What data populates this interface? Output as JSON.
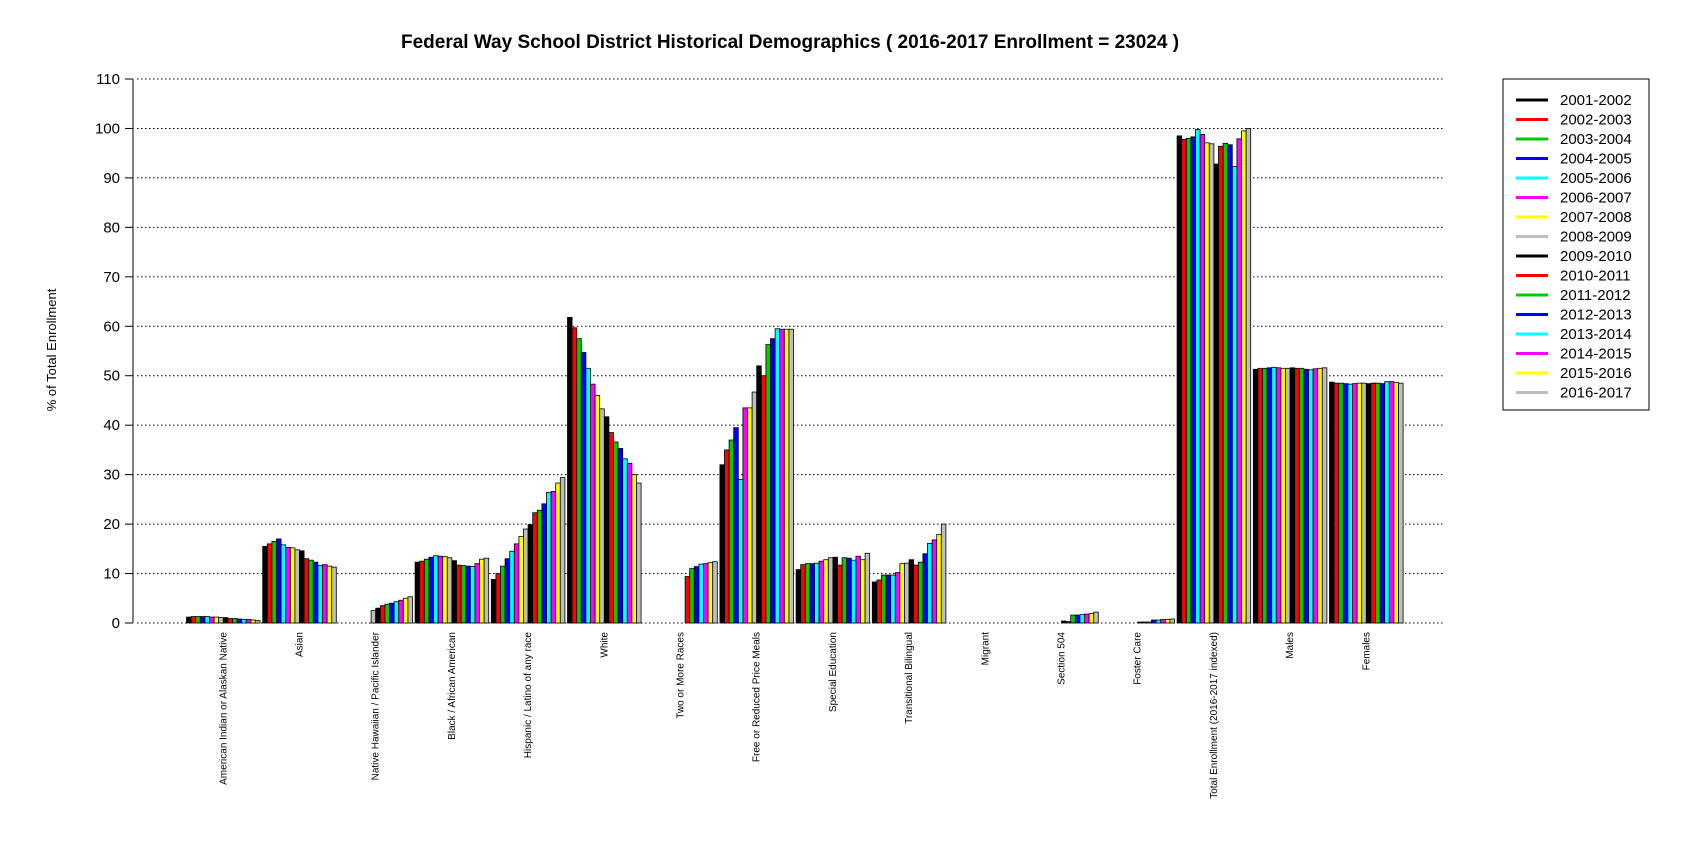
{
  "chart_data": {
    "type": "bar",
    "title": "Federal Way School District Historical Demographics  ( 2016-2017 Enrollment =  23024 )",
    "ylabel": "% of Total Enrollment",
    "xlabel": "",
    "ylim": [
      0,
      110
    ],
    "yticks": [
      0,
      10,
      20,
      30,
      40,
      50,
      60,
      70,
      80,
      90,
      100,
      110
    ],
    "grid": "horizontal dotted",
    "legend_position": "right",
    "categories": [
      "American Indian or Alaskan Native",
      "Asian",
      "Native Hawaiian / Pacific Islander",
      "Black / African American",
      "Hispanic / Latino of any race",
      "White",
      "Two or More Races",
      "Free or Reduced Price Meals",
      "Special Education",
      "Transitional Bilingual",
      "Migrant",
      "Section 504",
      "Foster Care",
      "Total Enrollment (2016-2017 indexed)",
      "Males",
      "Females"
    ],
    "series": [
      {
        "name": "2001-2002",
        "color": "#000000",
        "values": [
          1.2,
          15.5,
          0,
          12.3,
          8.8,
          61.8,
          0,
          32.0,
          10.8,
          8.3,
          0,
          0,
          0,
          98.5,
          51.3,
          48.7
        ]
      },
      {
        "name": "2002-2003",
        "color": "#ff0000",
        "values": [
          1.3,
          16.0,
          0,
          12.5,
          10.0,
          59.7,
          0,
          35.0,
          11.8,
          8.7,
          0,
          0,
          0,
          97.8,
          51.5,
          48.5
        ]
      },
      {
        "name": "2003-2004",
        "color": "#00cc00",
        "values": [
          1.3,
          16.5,
          0,
          12.9,
          11.5,
          57.5,
          0,
          37.0,
          12.0,
          9.7,
          0,
          0,
          0,
          98.0,
          51.5,
          48.5
        ]
      },
      {
        "name": "2004-2005",
        "color": "#0000ff",
        "values": [
          1.3,
          17.0,
          0,
          13.3,
          13.0,
          54.7,
          0,
          39.5,
          12.0,
          9.7,
          0,
          0,
          0,
          98.3,
          51.6,
          48.4
        ]
      },
      {
        "name": "2005-2006",
        "color": "#00ffff",
        "values": [
          1.3,
          15.8,
          0,
          13.6,
          14.5,
          51.5,
          0,
          29.0,
          12.1,
          9.7,
          0,
          0,
          0,
          99.8,
          51.7,
          48.3
        ]
      },
      {
        "name": "2006-2007",
        "color": "#ff00ff",
        "values": [
          1.2,
          15.3,
          0,
          13.5,
          16.0,
          48.3,
          0,
          43.5,
          12.5,
          10.2,
          0,
          0,
          0,
          98.8,
          51.6,
          48.4
        ]
      },
      {
        "name": "2007-2008",
        "color": "#ffff00",
        "values": [
          1.2,
          15.2,
          0,
          13.4,
          17.5,
          46.0,
          0,
          43.5,
          12.8,
          12.0,
          0,
          0,
          0,
          97.1,
          51.5,
          48.5
        ]
      },
      {
        "name": "2008-2009",
        "color": "#bebebe",
        "values": [
          1.1,
          14.8,
          2.5,
          13.2,
          19.0,
          43.3,
          0,
          46.7,
          13.2,
          12.1,
          0,
          0,
          0,
          96.9,
          51.5,
          48.5
        ]
      },
      {
        "name": "2009-2010",
        "color": "#000000",
        "values": [
          1.1,
          14.6,
          3.0,
          12.6,
          19.9,
          41.7,
          0,
          52.0,
          13.3,
          12.8,
          0,
          0.4,
          0.2,
          92.8,
          51.6,
          48.4
        ]
      },
      {
        "name": "2010-2011",
        "color": "#ff0000",
        "values": [
          0.9,
          13.0,
          3.5,
          11.7,
          22.3,
          38.5,
          9.4,
          50.0,
          11.7,
          11.7,
          0,
          0.3,
          0.2,
          96.4,
          51.5,
          48.5
        ]
      },
      {
        "name": "2011-2012",
        "color": "#00cc00",
        "values": [
          0.9,
          12.7,
          3.8,
          11.6,
          22.8,
          36.6,
          11.0,
          56.3,
          13.2,
          12.3,
          0,
          1.6,
          0.2,
          97.0,
          51.5,
          48.5
        ]
      },
      {
        "name": "2012-2013",
        "color": "#0000ff",
        "values": [
          0.8,
          12.3,
          4.0,
          11.5,
          24.1,
          35.3,
          11.4,
          57.5,
          13.1,
          14.0,
          0,
          1.6,
          0.6,
          96.7,
          51.3,
          48.4
        ]
      },
      {
        "name": "2013-2014",
        "color": "#00ffff",
        "values": [
          0.7,
          11.6,
          4.3,
          11.4,
          26.4,
          33.2,
          11.9,
          59.5,
          12.7,
          16.1,
          0,
          1.7,
          0.6,
          92.3,
          51.2,
          48.8
        ]
      },
      {
        "name": "2014-2015",
        "color": "#ff00ff",
        "values": [
          0.7,
          11.8,
          4.6,
          12.0,
          26.6,
          32.3,
          12.0,
          59.4,
          13.5,
          16.8,
          0,
          1.8,
          0.7,
          97.9,
          51.4,
          48.8
        ]
      },
      {
        "name": "2015-2016",
        "color": "#ffff00",
        "values": [
          0.6,
          11.5,
          5.0,
          12.9,
          28.3,
          30.0,
          12.2,
          59.4,
          12.8,
          17.9,
          0,
          1.9,
          0.7,
          99.5,
          51.5,
          48.6
        ]
      },
      {
        "name": "2016-2017",
        "color": "#bebebe",
        "values": [
          0.5,
          11.3,
          5.3,
          13.1,
          29.4,
          28.3,
          12.4,
          59.4,
          14.1,
          20.0,
          0,
          2.2,
          0.8,
          100.0,
          51.6,
          48.5
        ]
      }
    ]
  }
}
